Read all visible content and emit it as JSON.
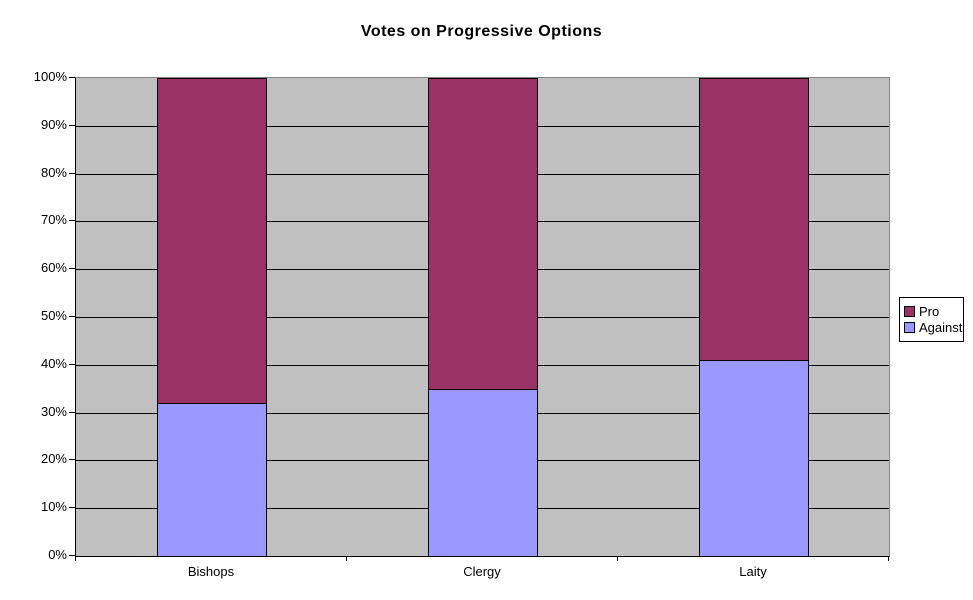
{
  "title": "Votes on Progressive Options",
  "chart_data": {
    "type": "bar",
    "stacked": true,
    "percent_stacked": true,
    "title": "Votes on Progressive Options",
    "xlabel": "",
    "ylabel": "",
    "categories": [
      "Bishops",
      "Clergy",
      "Laity"
    ],
    "series": [
      {
        "name": "Pro",
        "color": "#993366",
        "values": [
          68,
          65,
          59
        ]
      },
      {
        "name": "Against",
        "color": "#9999FF",
        "values": [
          32,
          35,
          41
        ]
      }
    ],
    "ylim": [
      0,
      100
    ],
    "ytick_step": 10,
    "ytick_labels": [
      "0%",
      "10%",
      "20%",
      "30%",
      "40%",
      "50%",
      "60%",
      "70%",
      "80%",
      "90%",
      "100%"
    ],
    "grid": true,
    "legend_position": "right",
    "plot_background": "#C0C0C0",
    "gridline_color": "#000000",
    "plot_border_color": "#848484",
    "axis_color": "#000000"
  },
  "legend": {
    "items": [
      {
        "label": "Pro",
        "color": "#993366"
      },
      {
        "label": "Against",
        "color": "#9999FF"
      }
    ]
  }
}
